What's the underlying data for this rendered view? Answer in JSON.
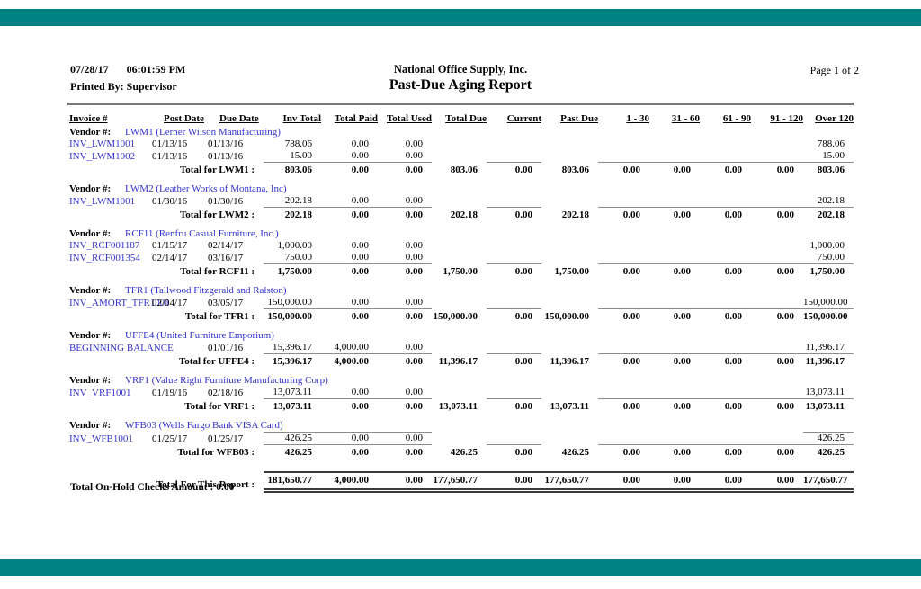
{
  "page": {
    "date": "07/28/17",
    "time": "06:01:59 PM",
    "printed_by": "Printed By: Supervisor",
    "company": "National Office Supply, Inc.",
    "report_title": "Past-Due Aging Report",
    "page_info": "Page 1 of 2",
    "footer_note": "Total On-Hold Checks Amount : 0.00"
  },
  "colors": {
    "bar_teal": "#008080",
    "link_blue": "#3333cc"
  },
  "table": {
    "columns": [
      "Invoice #",
      "Post Date",
      "Due Date",
      "Inv Total",
      "Total Paid",
      "Total Used",
      "Total Due",
      "Current",
      "Past Due",
      "1 - 30",
      "31 - 60",
      "61 - 90",
      "91 - 120",
      "Over 120"
    ],
    "vendor_label": "Vendor #:",
    "vendors": [
      {
        "code_name": "LWM1 (Lerner Wilson Manufacturing)",
        "invoices": [
          {
            "invoice": "INV_LWM1001",
            "post_date": "01/13/16",
            "due_date": "01/13/16",
            "inv_total": "788.06",
            "total_paid": "0.00",
            "total_used": "0.00",
            "over_120": "788.06"
          },
          {
            "invoice": "INV_LWM1002",
            "post_date": "01/13/16",
            "due_date": "01/13/16",
            "inv_total": "15.00",
            "total_paid": "0.00",
            "total_used": "0.00",
            "over_120": "15.00"
          }
        ],
        "total_label": "Total for LWM1 :",
        "total": {
          "inv_total": "803.06",
          "total_paid": "0.00",
          "total_used": "0.00",
          "total_due": "803.06",
          "current": "0.00",
          "past_due": "803.06",
          "b1_30": "0.00",
          "b31_60": "0.00",
          "b61_90": "0.00",
          "b91_120": "0.00",
          "over_120": "803.06"
        }
      },
      {
        "code_name": "LWM2 (Leather Works of Montana, Inc)",
        "invoices": [
          {
            "invoice": "INV_LWM1001",
            "post_date": "01/30/16",
            "due_date": "01/30/16",
            "inv_total": "202.18",
            "total_paid": "0.00",
            "total_used": "0.00",
            "over_120": "202.18"
          }
        ],
        "total_label": "Total for LWM2 :",
        "total": {
          "inv_total": "202.18",
          "total_paid": "0.00",
          "total_used": "0.00",
          "total_due": "202.18",
          "current": "0.00",
          "past_due": "202.18",
          "b1_30": "0.00",
          "b31_60": "0.00",
          "b61_90": "0.00",
          "b91_120": "0.00",
          "over_120": "202.18"
        }
      },
      {
        "code_name": "RCF11 (Renfru Casual Furniture, Inc.)",
        "invoices": [
          {
            "invoice": "INV_RCF001187",
            "post_date": "01/15/17",
            "due_date": "02/14/17",
            "inv_total": "1,000.00",
            "total_paid": "0.00",
            "total_used": "0.00",
            "over_120": "1,000.00"
          },
          {
            "invoice": "INV_RCF001354",
            "post_date": "02/14/17",
            "due_date": "03/16/17",
            "inv_total": "750.00",
            "total_paid": "0.00",
            "total_used": "0.00",
            "over_120": "750.00"
          }
        ],
        "total_label": "Total for RCF11 :",
        "total": {
          "inv_total": "1,750.00",
          "total_paid": "0.00",
          "total_used": "0.00",
          "total_due": "1,750.00",
          "current": "0.00",
          "past_due": "1,750.00",
          "b1_30": "0.00",
          "b31_60": "0.00",
          "b61_90": "0.00",
          "b91_120": "0.00",
          "over_120": "1,750.00"
        }
      },
      {
        "code_name": "TFR1 (Tallwood Fitzgerald and Ralston)",
        "invoices": [
          {
            "invoice": "INV_AMORT_TFR1001",
            "post_date": "02/04/17",
            "due_date": "03/05/17",
            "inv_total": "150,000.00",
            "total_paid": "0.00",
            "total_used": "0.00",
            "over_120": "150,000.00"
          }
        ],
        "total_label": "Total for TFR1 :",
        "total": {
          "inv_total": "150,000.00",
          "total_paid": "0.00",
          "total_used": "0.00",
          "total_due": "150,000.00",
          "current": "0.00",
          "past_due": "150,000.00",
          "b1_30": "0.00",
          "b31_60": "0.00",
          "b61_90": "0.00",
          "b91_120": "0.00",
          "over_120": "150,000.00"
        }
      },
      {
        "code_name": "UFFE4 (United Furniture Emporium)",
        "invoices": [
          {
            "invoice": "BEGINNING BALANCE",
            "post_date": "",
            "due_date": "01/01/16",
            "inv_total": "15,396.17",
            "total_paid": "4,000.00",
            "total_used": "0.00",
            "over_120": "11,396.17"
          }
        ],
        "total_label": "Total for UFFE4 :",
        "total": {
          "inv_total": "15,396.17",
          "total_paid": "4,000.00",
          "total_used": "0.00",
          "total_due": "11,396.17",
          "current": "0.00",
          "past_due": "11,396.17",
          "b1_30": "0.00",
          "b31_60": "0.00",
          "b61_90": "0.00",
          "b91_120": "0.00",
          "over_120": "11,396.17"
        }
      },
      {
        "code_name": "VRF1 (Value Right Furniture Manufacturing Corp)",
        "invoices": [
          {
            "invoice": "INV_VRF1001",
            "post_date": "01/19/16",
            "due_date": "02/18/16",
            "inv_total": "13,073.11",
            "total_paid": "0.00",
            "total_used": "0.00",
            "over_120": "13,073.11"
          }
        ],
        "total_label": "Total for VRF1 :",
        "total": {
          "inv_total": "13,073.11",
          "total_paid": "0.00",
          "total_used": "0.00",
          "total_due": "13,073.11",
          "current": "0.00",
          "past_due": "13,073.11",
          "b1_30": "0.00",
          "b31_60": "0.00",
          "b61_90": "0.00",
          "b91_120": "0.00",
          "over_120": "13,073.11"
        }
      },
      {
        "code_name": "WFB03 (Wells Fargo Bank VISA Card)",
        "invoices": [
          {
            "invoice": "INV_WFB1001",
            "post_date": "01/25/17",
            "due_date": "01/25/17",
            "inv_total": "426.25",
            "total_paid": "0.00",
            "total_used": "0.00",
            "over_120": "426.25",
            "overline": true
          }
        ],
        "total_label": "Total for WFB03 :",
        "total": {
          "inv_total": "426.25",
          "total_paid": "0.00",
          "total_used": "0.00",
          "total_due": "426.25",
          "current": "0.00",
          "past_due": "426.25",
          "b1_30": "0.00",
          "b31_60": "0.00",
          "b61_90": "0.00",
          "b91_120": "0.00",
          "over_120": "426.25"
        }
      }
    ],
    "report_total_label": "Total For This Report :",
    "report_total": {
      "inv_total": "181,650.77",
      "total_paid": "4,000.00",
      "total_used": "0.00",
      "total_due": "177,650.77",
      "current": "0.00",
      "past_due": "177,650.77",
      "b1_30": "0.00",
      "b31_60": "0.00",
      "b61_90": "0.00",
      "b91_120": "0.00",
      "over_120": "177,650.77"
    }
  }
}
